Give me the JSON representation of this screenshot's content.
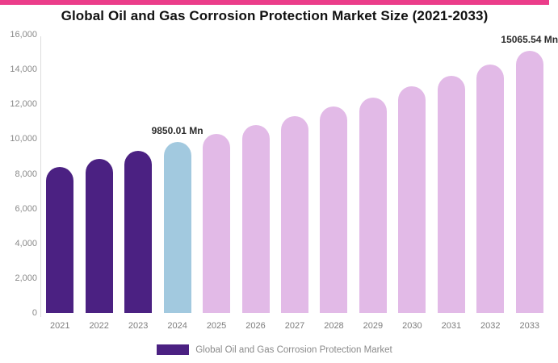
{
  "accent_bar_color": "#EB3D8A",
  "title": "Global Oil and Gas Corrosion Protection Market Size (2021-2033)",
  "chart_data": {
    "type": "bar",
    "title": "Global Oil and Gas Corrosion Protection Market Size (2021-2033)",
    "xlabel": "",
    "ylabel": "",
    "unit": "Mn",
    "categories": [
      "2021",
      "2022",
      "2023",
      "2024",
      "2025",
      "2026",
      "2027",
      "2028",
      "2029",
      "2030",
      "2031",
      "2032",
      "2033"
    ],
    "values": [
      8400,
      8850,
      9300,
      9850.01,
      10300,
      10800,
      11300,
      11850,
      12400,
      13050,
      13650,
      14300,
      15065.54
    ],
    "ylim": [
      0,
      16000
    ],
    "y_ticks": [
      "0",
      "2,000",
      "4,000",
      "6,000",
      "8,000",
      "10,000",
      "12,000",
      "14,000",
      "16,000"
    ],
    "grid": false,
    "annotations": [
      {
        "year": "2024",
        "text": "9850.01 Mn"
      },
      {
        "year": "2033",
        "text": "15065.54 Mn"
      }
    ],
    "segments": {
      "historical": [
        "2021",
        "2022",
        "2023"
      ],
      "base_year": [
        "2024"
      ],
      "forecast": [
        "2025",
        "2026",
        "2027",
        "2028",
        "2029",
        "2030",
        "2031",
        "2032",
        "2033"
      ]
    },
    "colors": {
      "historical": "#4B2182",
      "base_year": "#A2C9DF",
      "forecast": "#E2BAE7"
    },
    "legend": {
      "position": "bottom",
      "label": "Global Oil and Gas Corrosion Protection Market",
      "swatch_color": "#4B2182"
    }
  }
}
